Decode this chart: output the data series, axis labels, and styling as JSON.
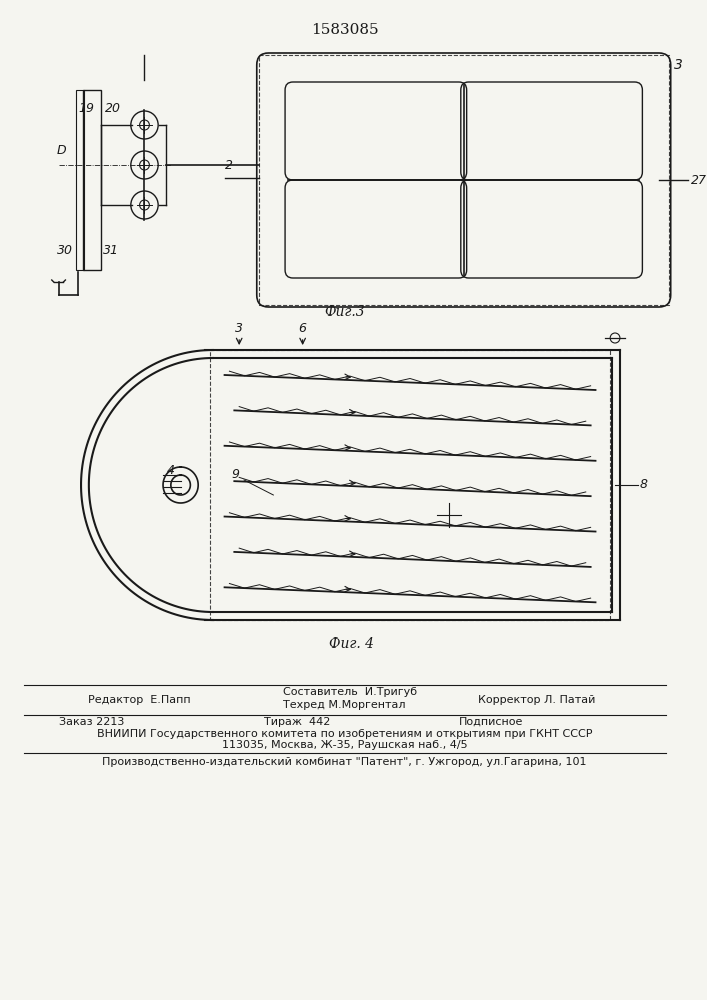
{
  "patent_number": "1583085",
  "fig3_label": "Фиг.3",
  "fig4_label": "Фиг. 4",
  "editor_line": "Редактор  Е.Папп",
  "composer_line": "Составитель  И.Тригуб",
  "techred_line": "Техред М.Моргентал",
  "corrector_line": "Корректор Л. Патай",
  "order_line": "Заказ 2213",
  "tirazh_line": "Тираж  442",
  "podpisnoe_line": "Подписное",
  "vniipи_line": "ВНИИПИ Государственного комитета по изобретениям и открытиям при ГКНТ СССР",
  "address_line": "113035, Москва, Ж-35, Раушская наб., 4/5",
  "publisher_line": "Производственно-издательский комбинат \"Патент\", г. Ужгород, ул.Гагарина, 101",
  "bg_color": "#f5f5f0",
  "line_color": "#1a1a1a",
  "dash_color": "#444444"
}
